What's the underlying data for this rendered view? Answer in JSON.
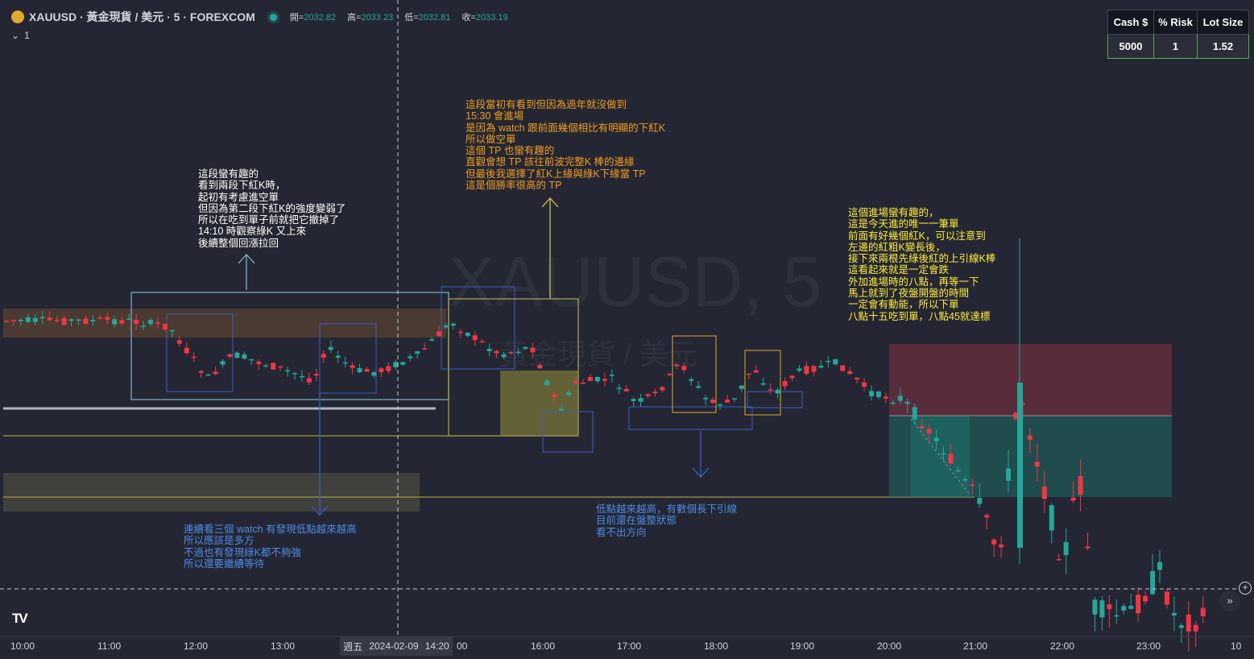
{
  "header": {
    "title": "XAUUSD · 黃金現貨 / 美元 · 5 · FOREXCOM",
    "ohlc": [
      {
        "label": "開",
        "value": "2032.82"
      },
      {
        "label": "高",
        "value": "2033.23"
      },
      {
        "label": "低",
        "value": "2032.81"
      },
      {
        "label": "收",
        "value": "2033.19"
      }
    ],
    "indicator_count": "1"
  },
  "risk_table": {
    "headers": [
      "Cash $",
      "% Risk",
      "Lot Size"
    ],
    "values": [
      "5000",
      "1",
      "1.52"
    ]
  },
  "watermark": {
    "line1": "XAUUSD, 5",
    "line2": "黃金現貨 / 美元"
  },
  "notes": {
    "left": "這段蠻有趣的\n看到兩段下紅K時，\n起初有考慮進空單\n但因為第二段下紅K的強度變弱了\n所以在吃到單子前就把它撤掉了\n14:10 時觀察綠K 又上來\n後續整個回漲拉回",
    "top": "這段當初有看到但因為過年就沒做到\n15:30 會進場\n是因為 watch 跟前面幾個相比有明顯的下紅K\n所以做空單\n這個 TP 也蠻有趣的\n直觀會想 TP 該往前波完整K 棒的邊緣\n但最後我選擇了紅K上緣與綠K下緣當 TP\n這是個勝率很高的 TP",
    "right": "這個進場蠻有趣的，\n這是今天進的唯一一筆單\n前面有好幾個紅K，可以注意到\n左邊的紅粗K變長後，\n接下來兩根先綠後紅的上引線K棒\n這看起來就是一定會跌\n外加進場時的八點，再等一下\n馬上就到了夜盤開盤的時間\n一定會有動能，所以下單\n八點十五吃到單，八點45就達標",
    "bottom_left": "連續看三個 watch 有發現低點越來越高\n所以應該是多方\n不過也有發現綠K都不夠強\n所以還要繼續等待",
    "bottom_mid": "低點越來越高，有數個長下引線\n目前還在盤整狀態\n看不出方向"
  },
  "colors": {
    "background": "#242733",
    "up_candle": "#26a69a",
    "down_candle": "#f23645",
    "note_white": "#ffffff",
    "note_orange": "#f09c1e",
    "note_yellow": "#ffeb3b",
    "note_blue": "#4f8ae6"
  },
  "x_axis": {
    "labels": [
      "10:00",
      "11:00",
      "12:00",
      "13:00",
      "00",
      "16:00",
      "17:00",
      "18:00",
      "19:00",
      "20:00",
      "21:00",
      "22:00",
      "23:00",
      "10"
    ],
    "crosshair_day": "週五",
    "crosshair_date": "2024-02-09",
    "crosshair_time": "14:20"
  },
  "icons": {
    "logo": "gold-coin-icon",
    "chevron": "chevron-down-icon",
    "add": "plus-circle-icon",
    "scroll": "double-chevron-right-icon",
    "tradingview": "tradingview-logo-icon"
  }
}
